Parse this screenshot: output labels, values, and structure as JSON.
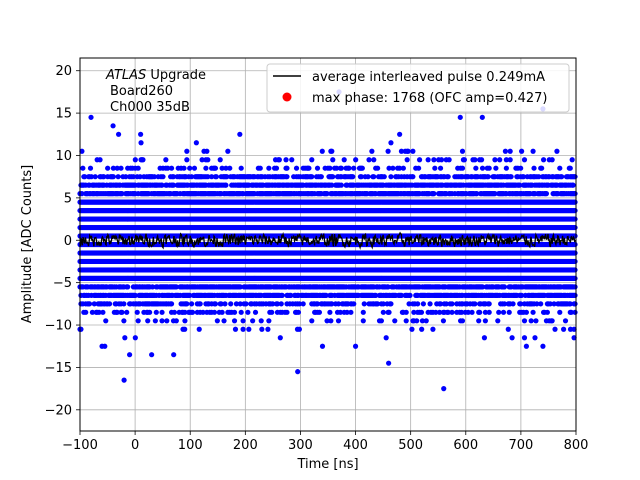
{
  "chart_data": {
    "type": "scatter",
    "title": "",
    "xlabel": "Time [ns]",
    "ylabel": "Amplitude [ADC Counts]",
    "xlim": [
      -100,
      800
    ],
    "ylim": [
      -22.5,
      21.5
    ],
    "xticks": [
      -100,
      0,
      100,
      200,
      300,
      400,
      500,
      600,
      700,
      800
    ],
    "yticks": [
      -20,
      -15,
      -10,
      -5,
      0,
      5,
      10,
      15,
      20
    ],
    "grid": true,
    "legend_position": "top-right",
    "annotation": {
      "line1_italic": "ATLAS",
      "line1_rest": " Upgrade",
      "line2": "Board260",
      "line3": "Ch000 35dB"
    },
    "series": [
      {
        "name": "average interleaved pulse 0.249mA",
        "kind": "line",
        "color": "#000000",
        "description_points": "noise around 0, approx -0.8 to +0.8"
      },
      {
        "name": "max phase: 1768 (OFC amp=0.427)",
        "kind": "scatter",
        "color": "#ff0000",
        "display_color": "#0000ff",
        "y_levels": [
          -17.5,
          -16.5,
          -15.5,
          -14.5,
          -13.5,
          -12.5,
          -11.5,
          -10.5,
          -9.5,
          -8.5,
          -7.5,
          -6.5,
          -5.5,
          -4.5,
          -3.5,
          -2.5,
          -1.5,
          -0.5,
          0.5,
          1.5,
          2.5,
          3.5,
          4.5,
          5.5,
          6.5,
          7.5,
          8.5,
          9.5,
          10.5,
          11.5,
          12.5,
          13.5,
          14.5,
          15.5,
          17.5
        ],
        "outliers": [
          {
            "x": -80,
            "y": 14.5
          },
          {
            "x": -40,
            "y": 13.5
          },
          {
            "x": -30,
            "y": 12.5
          },
          {
            "x": 10,
            "y": 12.5
          },
          {
            "x": 190,
            "y": 12.5
          },
          {
            "x": 370,
            "y": 17.5
          },
          {
            "x": 480,
            "y": 12.5
          },
          {
            "x": 590,
            "y": 14.5
          },
          {
            "x": 630,
            "y": 14.5
          },
          {
            "x": 740,
            "y": 15.5
          },
          {
            "x": -20,
            "y": -16.5
          },
          {
            "x": 295,
            "y": -15.5
          },
          {
            "x": 560,
            "y": -17.5
          },
          {
            "x": 460,
            "y": -14.5
          },
          {
            "x": -10,
            "y": -13.5
          },
          {
            "x": 30,
            "y": -13.5
          },
          {
            "x": 70,
            "y": -13.5
          },
          {
            "x": -60,
            "y": -12.5
          },
          {
            "x": -55,
            "y": -12.5
          },
          {
            "x": 340,
            "y": -12.5
          },
          {
            "x": 400,
            "y": -12.5
          },
          {
            "x": 710,
            "y": -12.5
          },
          {
            "x": 740,
            "y": -12.5
          },
          {
            "x": -100,
            "y": -10.5
          },
          {
            "x": 90,
            "y": -10.5
          },
          {
            "x": 230,
            "y": -10.5
          },
          {
            "x": 520,
            "y": -10.5
          },
          {
            "x": 790,
            "y": -10.5
          }
        ]
      }
    ]
  }
}
